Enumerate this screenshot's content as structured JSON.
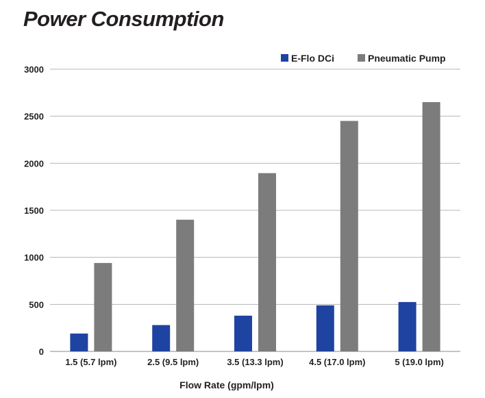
{
  "chart_data": {
    "type": "bar",
    "title": "Power Consumption",
    "xlabel": "Flow Rate (gpm/lpm)",
    "ylabel": "",
    "ylim": [
      0,
      3000
    ],
    "yticks": [
      0,
      500,
      1000,
      1500,
      2000,
      2500,
      3000
    ],
    "grid": true,
    "legend_position": "top-right",
    "categories": [
      "1.5 (5.7 lpm)",
      "2.5 (9.5 lpm)",
      "3.5 (13.3 lpm)",
      "4.5 (17.0 lpm)",
      "5 (19.0 lpm)"
    ],
    "series": [
      {
        "name": "E-Flo DCi",
        "color": "#1f43a0",
        "values": [
          190,
          280,
          380,
          490,
          525
        ]
      },
      {
        "name": "Pneumatic Pump",
        "color": "#7c7c7c",
        "values": [
          940,
          1400,
          1895,
          2450,
          2650
        ]
      }
    ]
  }
}
